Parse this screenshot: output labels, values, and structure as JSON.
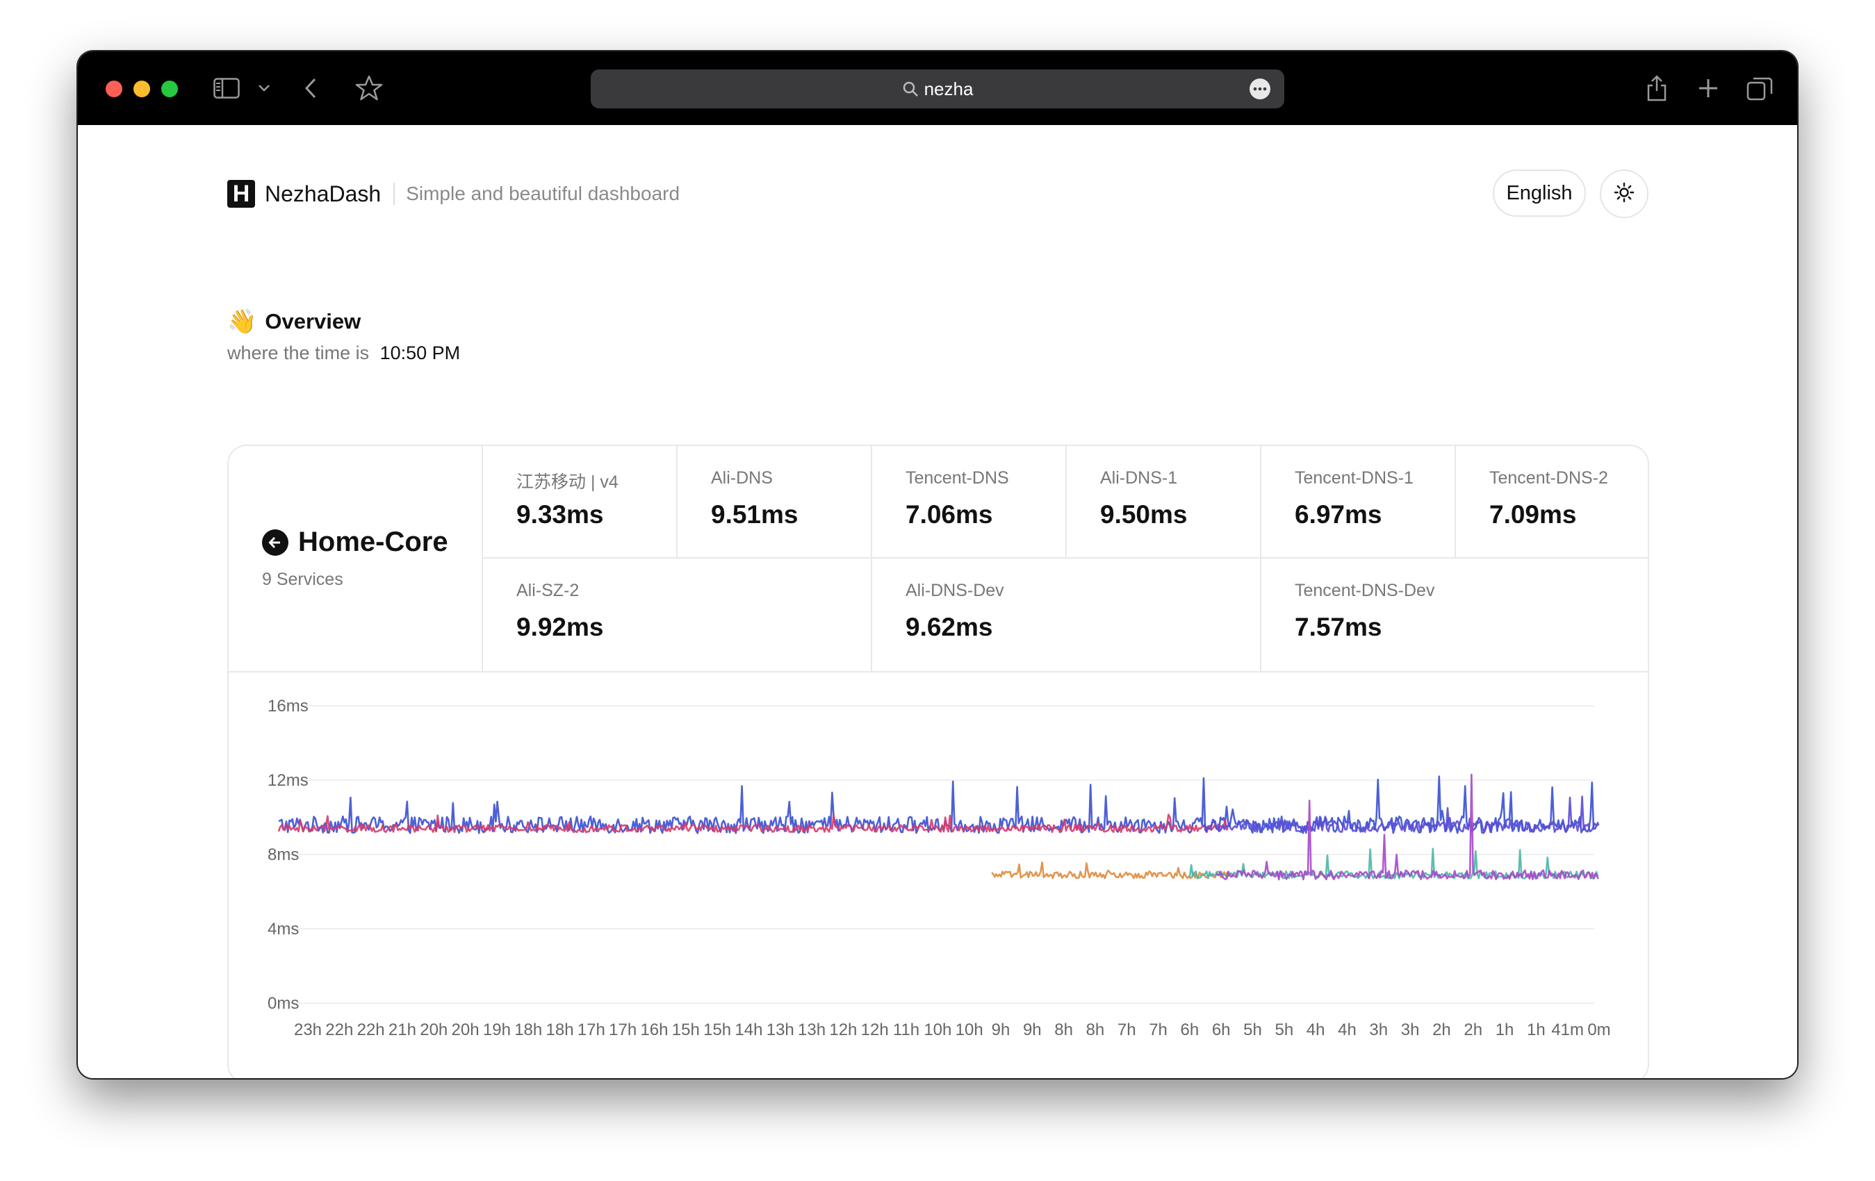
{
  "browser": {
    "url_text": "nezha",
    "icons": [
      "sidebar-icon",
      "chevron-down-icon",
      "back-icon",
      "star-icon",
      "search-icon",
      "more-icon",
      "share-icon",
      "new-tab-icon",
      "tabs-icon"
    ]
  },
  "header": {
    "logo_letter": "H",
    "brand": "NezhaDash",
    "tagline": "Simple and beautiful dashboard",
    "language": "English",
    "theme_icon": "sun-icon"
  },
  "overview": {
    "emoji": "👋",
    "title": "Overview",
    "subtitle": "where the time is",
    "time": "10:50 PM"
  },
  "server": {
    "name": "Home-Core",
    "services_count": "9 Services",
    "icon": "arrow-left-circle-icon"
  },
  "services": [
    {
      "name": "江苏移动 | v4",
      "latency": "9.33ms"
    },
    {
      "name": "Ali-DNS",
      "latency": "9.51ms"
    },
    {
      "name": "Tencent-DNS",
      "latency": "7.06ms"
    },
    {
      "name": "Ali-DNS-1",
      "latency": "9.50ms"
    },
    {
      "name": "Tencent-DNS-1",
      "latency": "6.97ms"
    },
    {
      "name": "Tencent-DNS-2",
      "latency": "7.09ms"
    },
    {
      "name": "Ali-SZ-2",
      "latency": "9.92ms"
    },
    {
      "name": "Ali-DNS-Dev",
      "latency": "9.62ms"
    },
    {
      "name": "Tencent-DNS-Dev",
      "latency": "7.57ms"
    }
  ],
  "chart_data": {
    "type": "line",
    "ylim": [
      0,
      16
    ],
    "yticks": [
      "16ms",
      "12ms",
      "8ms",
      "4ms",
      "0ms"
    ],
    "ytick_values": [
      16,
      12,
      8,
      4,
      0
    ],
    "xticks": [
      "23h",
      "22h",
      "22h",
      "21h",
      "20h",
      "20h",
      "19h",
      "18h",
      "18h",
      "17h",
      "17h",
      "16h",
      "15h",
      "15h",
      "14h",
      "13h",
      "13h",
      "12h",
      "12h",
      "11h",
      "10h",
      "10h",
      "9h",
      "9h",
      "8h",
      "8h",
      "7h",
      "7h",
      "6h",
      "6h",
      "5h",
      "5h",
      "4h",
      "4h",
      "3h",
      "3h",
      "2h",
      "2h",
      "1h",
      "1h",
      "41m",
      "0m"
    ],
    "grid": true,
    "series": [
      {
        "color": "#3a4fd1",
        "mean": 9.6,
        "noise": 0.45,
        "spike_max": 12.3,
        "start_frac": 0.0,
        "end_frac": 1.0
      },
      {
        "color": "#d63a6a",
        "mean": 9.4,
        "noise": 0.2,
        "spike_max": 10.2,
        "start_frac": 0.0,
        "end_frac": 0.72
      },
      {
        "color": "#5b4ad6",
        "mean": 9.5,
        "noise": 0.3,
        "spike_max": 11.4,
        "start_frac": 0.7,
        "end_frac": 1.0
      },
      {
        "color": "#e08a3a",
        "mean": 6.9,
        "noise": 0.18,
        "spike_max": 7.6,
        "start_frac": 0.54,
        "end_frac": 0.72
      },
      {
        "color": "#4bb6a8",
        "mean": 6.9,
        "noise": 0.2,
        "spike_max": 8.4,
        "start_frac": 0.69,
        "end_frac": 1.0
      },
      {
        "color": "#a548c9",
        "mean": 6.9,
        "noise": 0.25,
        "spike_max": 12.4,
        "start_frac": 0.71,
        "end_frac": 1.0
      }
    ]
  }
}
